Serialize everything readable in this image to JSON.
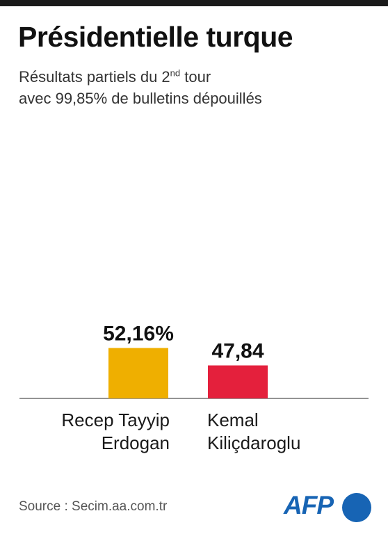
{
  "header": {
    "title": "Présidentielle turque",
    "subtitle_line1_pre": "Résultats partiels du 2",
    "subtitle_line1_sup": "nd",
    "subtitle_line1_post": " tour",
    "subtitle_line2": "avec 99,85% de bulletins dépouillés"
  },
  "footer": {
    "source": "Source : Secim.aa.com.tr",
    "logo": "AFP"
  },
  "colors": {
    "erdogan": "#efaf00",
    "kilicdaroglu": "#e4203c",
    "afp_blue": "#1764b4"
  },
  "chart_data": {
    "type": "bar",
    "categories": [
      "Recep Tayyip\nErdogan",
      "Kemal\nKiliçdaroglu"
    ],
    "values": [
      52.16,
      47.84
    ],
    "value_labels": [
      "52,16%",
      "47,84"
    ],
    "colors": [
      "#efaf00",
      "#e4203c"
    ],
    "grid": false,
    "legend": "none"
  }
}
